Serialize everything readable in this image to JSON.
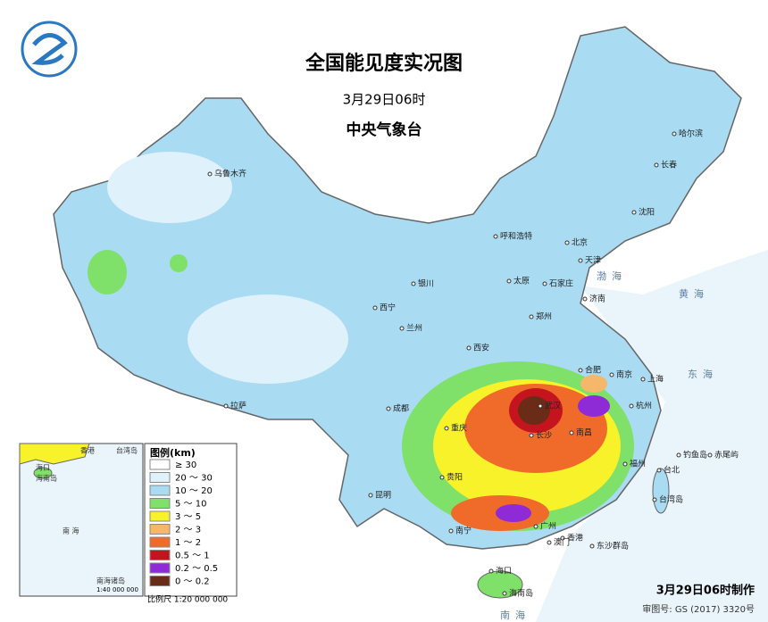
{
  "header": {
    "title": "全国能见度实况图",
    "time": "3月29日06时",
    "agency": "中央气象台"
  },
  "legend": {
    "title": "图例(km)",
    "items": [
      {
        "label": "≥ 30",
        "color": "#ffffff"
      },
      {
        "label": "20 ～ 30",
        "color": "#dff1fb"
      },
      {
        "label": "10 ～ 20",
        "color": "#a9dbf2"
      },
      {
        "label": "5 ～ 10",
        "color": "#7fe06a"
      },
      {
        "label": "3 ～ 5",
        "color": "#f7f229"
      },
      {
        "label": "2 ～ 3",
        "color": "#f5b86b"
      },
      {
        "label": "1 ～ 2",
        "color": "#f06a2a"
      },
      {
        "label": "0.5 ～ 1",
        "color": "#c4141d"
      },
      {
        "label": "0.2 ～ 0.5",
        "color": "#8f2bd6"
      },
      {
        "label": "0 ～ 0.2",
        "color": "#6a2c17"
      }
    ],
    "scale": "比例尺  1:20 000 000"
  },
  "cities": [
    "乌鲁木齐",
    "哈尔滨",
    "长春",
    "沈阳",
    "呼和浩特",
    "北京",
    "天津",
    "石家庄",
    "太原",
    "银川",
    "济南",
    "西宁",
    "兰州",
    "郑州",
    "西安",
    "合肥",
    "南京",
    "上海",
    "杭州",
    "武汉",
    "成都",
    "重庆",
    "长沙",
    "南昌",
    "拉萨",
    "贵阳",
    "昆明",
    "福州",
    "台北",
    "南宁",
    "广州",
    "香港",
    "澳门",
    "海口",
    "海南岛",
    "东沙群岛",
    "台湾岛",
    "赤尾屿",
    "钓鱼岛"
  ],
  "seas": [
    "渤海",
    "黄海",
    "东海",
    "南海"
  ],
  "inset": {
    "labels": [
      "香港",
      "台湾岛",
      "海口",
      "海南岛",
      "南 海",
      "南海诸岛"
    ],
    "scale": "1:40 000 000"
  },
  "footer": {
    "made": "3月29日06时制作",
    "approval": "审图号: GS (2017) 3320号"
  }
}
